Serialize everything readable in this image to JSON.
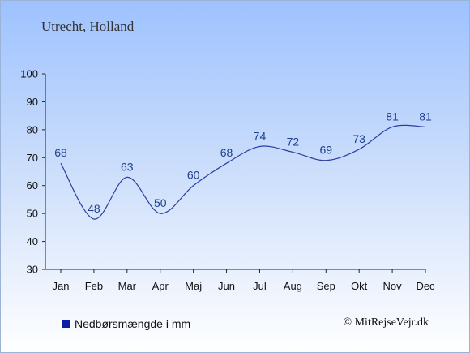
{
  "title": "Utrecht, Holland",
  "legend": {
    "label": "Nedbørsmængde i mm",
    "color": "#0a1fa8"
  },
  "copyright": "© MitRejseVejr.dk",
  "colors": {
    "line": "#2c3fa0",
    "axis": "#222222",
    "labels": "#1d3f8c"
  },
  "chart_data": {
    "type": "line",
    "title": "",
    "xlabel": "",
    "ylabel": "",
    "categories": [
      "Jan",
      "Feb",
      "Mar",
      "Apr",
      "Maj",
      "Jun",
      "Jul",
      "Aug",
      "Sep",
      "Okt",
      "Nov",
      "Dec"
    ],
    "series": [
      {
        "name": "Nedbørsmængde i mm",
        "values": [
          68,
          48,
          63,
          50,
          60,
          68,
          74,
          72,
          69,
          73,
          81,
          81
        ]
      }
    ],
    "ylim": [
      30,
      100
    ],
    "yticks": [
      30,
      40,
      50,
      60,
      70,
      80,
      90,
      100
    ],
    "grid": false,
    "legend_position": "bottom-left"
  }
}
